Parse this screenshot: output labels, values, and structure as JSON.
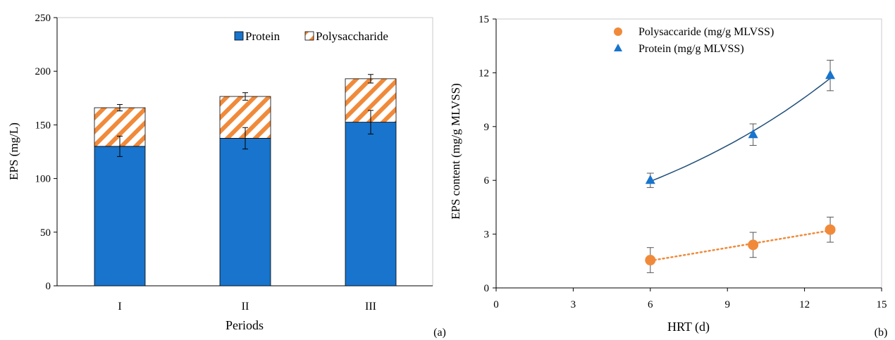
{
  "colors": {
    "protein": "#1874CD",
    "polysaccharide": "#F08A3A",
    "protein_line": "#1F4E79"
  },
  "chart_data": [
    {
      "type": "bar",
      "stacked": true,
      "panel_label": "(a)",
      "xlabel": "Periods",
      "ylabel": "EPS (mg/L)",
      "categories": [
        "I",
        "II",
        "III"
      ],
      "ylim": [
        0,
        250
      ],
      "yticks": [
        0,
        50,
        100,
        150,
        200,
        250
      ],
      "series": [
        {
          "name": "Protein",
          "values": [
            130,
            137.5,
            152.5
          ],
          "errors": [
            9.5,
            10,
            11
          ],
          "fill": "solid"
        },
        {
          "name": "Polysaccharide",
          "values": [
            36,
            39,
            40.5
          ],
          "errors": [
            3,
            3.5,
            4
          ],
          "fill": "hatched"
        }
      ],
      "legend": "top-right",
      "grid": false
    },
    {
      "type": "scatter",
      "panel_label": "(b)",
      "xlabel": "HRT (d)",
      "ylabel": "EPS content (mg/g MLVSS)",
      "xlim": [
        0,
        15
      ],
      "ylim": [
        0,
        15
      ],
      "xticks": [
        0,
        3,
        6,
        9,
        12,
        15
      ],
      "yticks": [
        0,
        3,
        6,
        9,
        12,
        15
      ],
      "series": [
        {
          "name": "Polysaccaride (mg/g MLVSS)",
          "marker": "circle",
          "x": [
            6,
            10,
            13
          ],
          "y": [
            1.55,
            2.4,
            3.25
          ],
          "errors": [
            0.7,
            0.7,
            0.7
          ],
          "trendline": "linear"
        },
        {
          "name": "Protein (mg/g MLVSS)",
          "marker": "triangle",
          "x": [
            6,
            10,
            13
          ],
          "y": [
            6.0,
            8.55,
            11.85
          ],
          "errors": [
            0.4,
            0.6,
            0.85
          ],
          "trendline": "exponential"
        }
      ],
      "legend": "top",
      "grid": false
    }
  ]
}
